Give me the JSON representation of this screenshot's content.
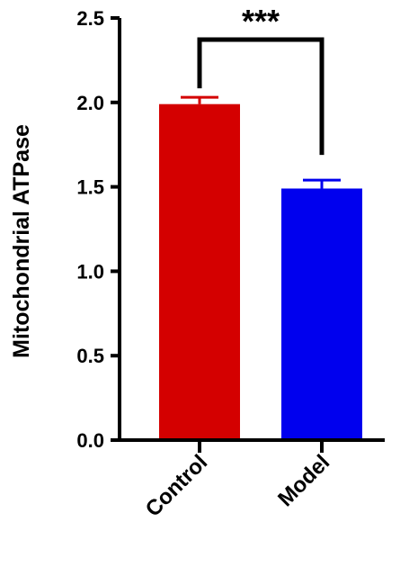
{
  "chart_data": {
    "type": "bar",
    "title": "",
    "ylabel": "Mitochondrial ATPase",
    "xlabel": "",
    "ylim": [
      0,
      2.5
    ],
    "yticks": [
      0.0,
      0.5,
      1.0,
      1.5,
      2.0,
      2.5
    ],
    "ytick_labels": [
      "0.0",
      "0.5",
      "1.0",
      "1.5",
      "2.0",
      "2.5"
    ],
    "categories": [
      "Control",
      "Model"
    ],
    "values": [
      1.99,
      1.49
    ],
    "errors": [
      0.04,
      0.05
    ],
    "colors": [
      "#d40000",
      "#0000ee"
    ],
    "significance": {
      "between": [
        "Control",
        "Model"
      ],
      "label": "***"
    }
  }
}
